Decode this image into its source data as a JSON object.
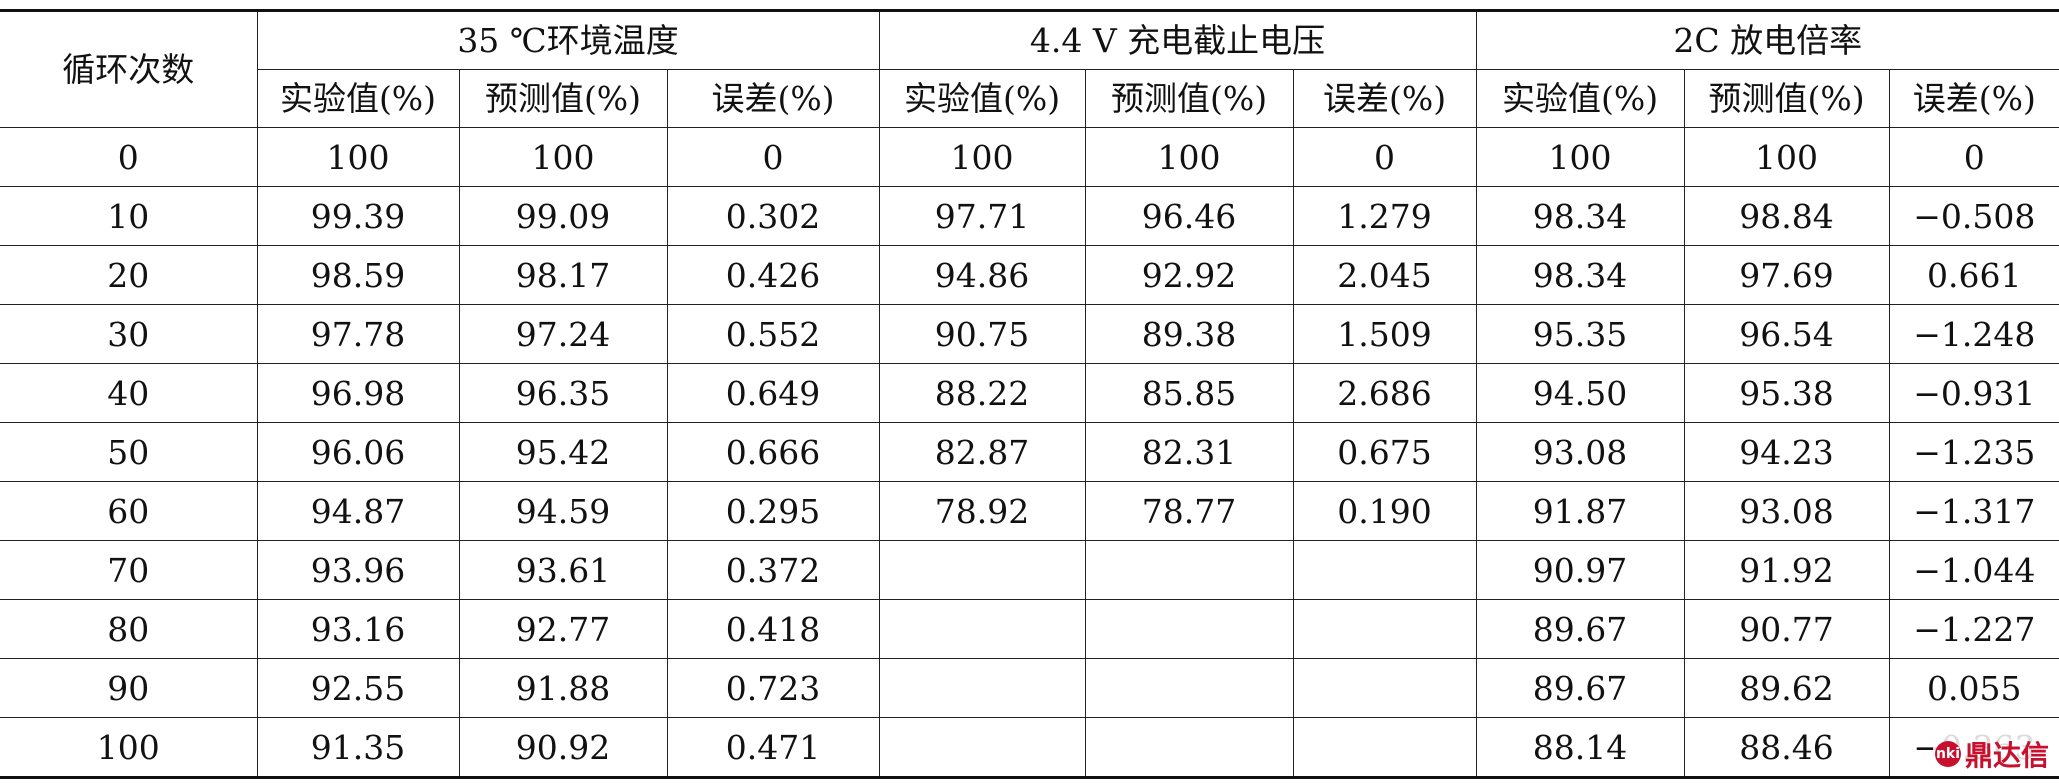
{
  "table": {
    "corner_header": "循环次数",
    "groups": [
      "35 ℃环境温度",
      "4.4 V 充电截止电压",
      "2C 放电倍率"
    ],
    "sub_headers": [
      "实验值(%)",
      "预测值(%)",
      "误差(%)"
    ],
    "rows": [
      [
        "0",
        "100",
        "100",
        "0",
        "100",
        "100",
        "0",
        "100",
        "100",
        "0"
      ],
      [
        "10",
        "99.39",
        "99.09",
        "0.302",
        "97.71",
        "96.46",
        "1.279",
        "98.34",
        "98.84",
        "−0.508"
      ],
      [
        "20",
        "98.59",
        "98.17",
        "0.426",
        "94.86",
        "92.92",
        "2.045",
        "98.34",
        "97.69",
        "0.661"
      ],
      [
        "30",
        "97.78",
        "97.24",
        "0.552",
        "90.75",
        "89.38",
        "1.509",
        "95.35",
        "96.54",
        "−1.248"
      ],
      [
        "40",
        "96.98",
        "96.35",
        "0.649",
        "88.22",
        "85.85",
        "2.686",
        "94.50",
        "95.38",
        "−0.931"
      ],
      [
        "50",
        "96.06",
        "95.42",
        "0.666",
        "82.87",
        "82.31",
        "0.675",
        "93.08",
        "94.23",
        "−1.235"
      ],
      [
        "60",
        "94.87",
        "94.59",
        "0.295",
        "78.92",
        "78.77",
        "0.190",
        "91.87",
        "93.08",
        "−1.317"
      ],
      [
        "70",
        "93.96",
        "93.61",
        "0.372",
        "",
        "",
        "",
        "90.97",
        "91.92",
        "−1.044"
      ],
      [
        "80",
        "93.16",
        "92.77",
        "0.418",
        "",
        "",
        "",
        "89.67",
        "90.77",
        "−1.227"
      ],
      [
        "90",
        "92.55",
        "91.88",
        "0.723",
        "",
        "",
        "",
        "89.67",
        "89.62",
        "0.055"
      ],
      [
        "100",
        "91.35",
        "90.92",
        "0.471",
        "",
        "",
        "",
        "88.14",
        "88.46",
        "−0.363"
      ]
    ]
  },
  "watermark": {
    "logo_text": "nki",
    "text": "鼎达信"
  }
}
